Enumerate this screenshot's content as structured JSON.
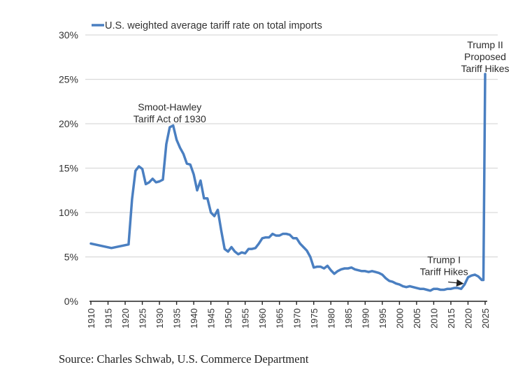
{
  "chart_data": {
    "type": "line",
    "title": "",
    "xlabel": "",
    "ylabel": "",
    "ylim": [
      0,
      30
    ],
    "xlim": [
      1910,
      2025
    ],
    "grid": "horizontal",
    "legend_position": "top-left",
    "y_ticks": [
      {
        "value": 0,
        "label": "0%"
      },
      {
        "value": 5,
        "label": "5%"
      },
      {
        "value": 10,
        "label": "10%"
      },
      {
        "value": 15,
        "label": "15%"
      },
      {
        "value": 20,
        "label": "20%"
      },
      {
        "value": 25,
        "label": "25%"
      },
      {
        "value": 30,
        "label": "30%"
      }
    ],
    "x_ticks": [
      1910,
      1915,
      1920,
      1925,
      1930,
      1935,
      1940,
      1945,
      1950,
      1955,
      1960,
      1965,
      1970,
      1975,
      1980,
      1985,
      1990,
      1995,
      2000,
      2005,
      2010,
      2015,
      2020,
      2025
    ],
    "series": [
      {
        "name": "U.S. weighted average tariff rate on total imports",
        "color": "#4a7fc1",
        "points": [
          [
            1910,
            6.5
          ],
          [
            1916,
            6.0
          ],
          [
            1921,
            6.4
          ],
          [
            1922,
            11.5
          ],
          [
            1923,
            14.7
          ],
          [
            1924,
            15.2
          ],
          [
            1925,
            14.9
          ],
          [
            1926,
            13.2
          ],
          [
            1927,
            13.4
          ],
          [
            1928,
            13.8
          ],
          [
            1929,
            13.4
          ],
          [
            1930,
            13.5
          ],
          [
            1931,
            13.7
          ],
          [
            1932,
            17.7
          ],
          [
            1933,
            19.6
          ],
          [
            1934,
            19.8
          ],
          [
            1935,
            18.2
          ],
          [
            1936,
            17.3
          ],
          [
            1937,
            16.6
          ],
          [
            1938,
            15.5
          ],
          [
            1939,
            15.4
          ],
          [
            1940,
            14.3
          ],
          [
            1941,
            12.5
          ],
          [
            1942,
            13.6
          ],
          [
            1943,
            11.6
          ],
          [
            1944,
            11.6
          ],
          [
            1945,
            10.0
          ],
          [
            1946,
            9.6
          ],
          [
            1947,
            10.3
          ],
          [
            1948,
            8.0
          ],
          [
            1949,
            5.9
          ],
          [
            1950,
            5.6
          ],
          [
            1951,
            6.1
          ],
          [
            1952,
            5.6
          ],
          [
            1953,
            5.3
          ],
          [
            1954,
            5.5
          ],
          [
            1955,
            5.4
          ],
          [
            1956,
            5.9
          ],
          [
            1957,
            5.9
          ],
          [
            1958,
            6.0
          ],
          [
            1959,
            6.5
          ],
          [
            1960,
            7.1
          ],
          [
            1961,
            7.2
          ],
          [
            1962,
            7.2
          ],
          [
            1963,
            7.6
          ],
          [
            1964,
            7.4
          ],
          [
            1965,
            7.4
          ],
          [
            1966,
            7.6
          ],
          [
            1967,
            7.6
          ],
          [
            1968,
            7.5
          ],
          [
            1969,
            7.1
          ],
          [
            1970,
            7.1
          ],
          [
            1971,
            6.5
          ],
          [
            1972,
            6.1
          ],
          [
            1973,
            5.7
          ],
          [
            1974,
            5.0
          ],
          [
            1975,
            3.8
          ],
          [
            1976,
            3.9
          ],
          [
            1977,
            3.9
          ],
          [
            1978,
            3.7
          ],
          [
            1979,
            4.0
          ],
          [
            1980,
            3.5
          ],
          [
            1981,
            3.1
          ],
          [
            1982,
            3.4
          ],
          [
            1983,
            3.6
          ],
          [
            1984,
            3.7
          ],
          [
            1985,
            3.7
          ],
          [
            1986,
            3.8
          ],
          [
            1987,
            3.6
          ],
          [
            1988,
            3.5
          ],
          [
            1989,
            3.4
          ],
          [
            1990,
            3.4
          ],
          [
            1991,
            3.3
          ],
          [
            1992,
            3.4
          ],
          [
            1993,
            3.3
          ],
          [
            1994,
            3.2
          ],
          [
            1995,
            3.0
          ],
          [
            1996,
            2.6
          ],
          [
            1997,
            2.3
          ],
          [
            1998,
            2.2
          ],
          [
            1999,
            2.0
          ],
          [
            2000,
            1.9
          ],
          [
            2001,
            1.7
          ],
          [
            2002,
            1.6
          ],
          [
            2003,
            1.7
          ],
          [
            2004,
            1.6
          ],
          [
            2005,
            1.5
          ],
          [
            2006,
            1.4
          ],
          [
            2007,
            1.4
          ],
          [
            2008,
            1.3
          ],
          [
            2009,
            1.2
          ],
          [
            2010,
            1.4
          ],
          [
            2011,
            1.4
          ],
          [
            2012,
            1.3
          ],
          [
            2013,
            1.3
          ],
          [
            2014,
            1.4
          ],
          [
            2015,
            1.4
          ],
          [
            2016,
            1.5
          ],
          [
            2017,
            1.5
          ],
          [
            2018,
            1.4
          ],
          [
            2019,
            1.9
          ],
          [
            2020,
            2.7
          ],
          [
            2021,
            2.9
          ],
          [
            2022,
            3.0
          ],
          [
            2023,
            2.8
          ],
          [
            2024,
            2.4
          ],
          [
            2024.5,
            2.4
          ],
          [
            2025,
            25.6
          ]
        ]
      }
    ],
    "annotations": [
      {
        "lines": [
          "Smoot-Hawley",
          "Tariff Act of 1930"
        ],
        "x": 1933,
        "y": 21.5,
        "arrow": false
      },
      {
        "lines": [
          "Trump I",
          "Tariff Hikes"
        ],
        "x": 2013,
        "y": 4.3,
        "arrow": true,
        "arrow_to": [
          2018.5,
          2.0
        ]
      },
      {
        "lines": [
          "Trump II",
          "Proposed",
          "Tariff Hikes"
        ],
        "x": 2025,
        "y": 28.5,
        "arrow": false
      }
    ]
  },
  "source": "Source: Charles Schwab, U.S. Commerce Department"
}
